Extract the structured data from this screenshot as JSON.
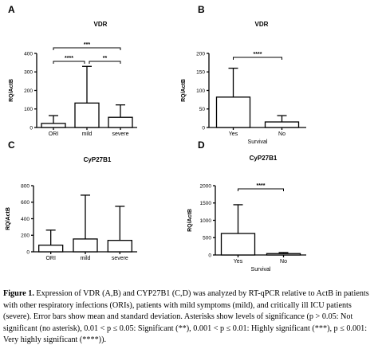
{
  "chart_data": [
    {
      "panel": "A",
      "type": "bar",
      "title": "VDR",
      "ylabel": "RQ/ActB",
      "xlabel": "",
      "categories": [
        "ORI",
        "mild",
        "severe"
      ],
      "values": [
        22,
        132,
        55
      ],
      "errors": [
        42,
        198,
        67
      ],
      "ylim": [
        0,
        400
      ],
      "yticks": [
        "0",
        "100",
        "200",
        "300",
        "400"
      ],
      "significance": [
        {
          "from": "ORI",
          "to": "mild",
          "label": "****"
        },
        {
          "from": "mild",
          "to": "severe",
          "label": "**"
        },
        {
          "from": "ORI",
          "to": "severe",
          "label": "***"
        }
      ]
    },
    {
      "panel": "B",
      "type": "bar",
      "title": "VDR",
      "ylabel": "RQ/ActB",
      "xlabel": "Survival",
      "categories": [
        "Yes",
        "No"
      ],
      "values": [
        82,
        15
      ],
      "errors": [
        78,
        17
      ],
      "ylim": [
        0,
        200
      ],
      "yticks": [
        "0",
        "50",
        "100",
        "150",
        "200"
      ],
      "significance": [
        {
          "from": "Yes",
          "to": "No",
          "label": "****"
        }
      ]
    },
    {
      "panel": "C",
      "type": "bar",
      "title": "CyP27B1",
      "ylabel": "RQ/ActB",
      "xlabel": "",
      "categories": [
        "ORI",
        "mild",
        "severe"
      ],
      "values": [
        80,
        155,
        138
      ],
      "errors": [
        182,
        530,
        412
      ],
      "ylim": [
        0,
        800
      ],
      "yticks": [
        "0",
        "200",
        "400",
        "600",
        "800"
      ],
      "significance": []
    },
    {
      "panel": "D",
      "type": "bar",
      "title": "CyP27B1",
      "ylabel": "RQ/ActB",
      "xlabel": "Survival",
      "categories": [
        "Yes",
        "No"
      ],
      "values": [
        620,
        40
      ],
      "errors": [
        830,
        30
      ],
      "ylim": [
        0,
        2000
      ],
      "yticks": [
        "0",
        "500",
        "1000",
        "1500",
        "2000"
      ],
      "significance": [
        {
          "from": "Yes",
          "to": "No",
          "label": "****"
        }
      ]
    }
  ],
  "caption": {
    "label": "Figure 1.",
    "text": "Expression of VDR (A,B) and CYP27B1 (C,D) was analyzed by RT-qPCR relative to ActB in patients with other respiratory infections (ORIs), patients with mild symptoms (mild), and critically ill ICU patients (severe). Error bars show mean and standard deviation. Asterisks show levels of significance (p > 0.05: Not significant (no asterisk), 0.01 < p ≤ 0.05: Significant (**), 0.001 < p ≤ 0.01: Highly significant (***), p ≤ 0.001: Very highly significant (****))."
  }
}
